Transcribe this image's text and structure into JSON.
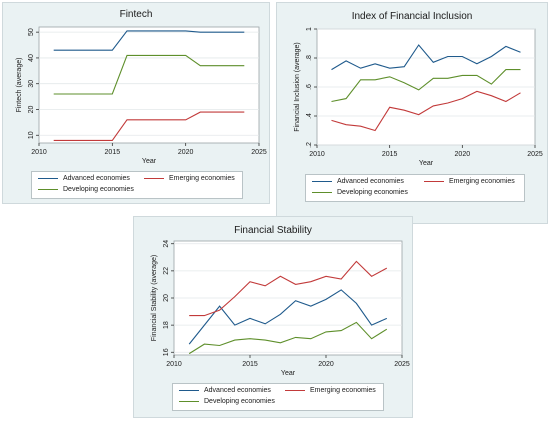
{
  "colors": {
    "advanced": "#1f5a8c",
    "emerging": "#c23a3a",
    "developing": "#5e8f2b",
    "plot_bg": "#ffffff",
    "panel_bg": "#eaf2f3"
  },
  "chart_data": [
    {
      "type": "line",
      "title": "Fintech",
      "xlabel": "Year",
      "ylabel": "Fintech (average)",
      "xlim": [
        2010,
        2025
      ],
      "ylim": [
        7,
        52
      ],
      "xticks": [
        2010,
        2015,
        2020,
        2025
      ],
      "yticks": [
        10,
        20,
        30,
        40,
        50
      ],
      "legend_position": "bottom",
      "x": [
        2011,
        2012,
        2013,
        2014,
        2015,
        2016,
        2017,
        2018,
        2019,
        2020,
        2021,
        2022,
        2023,
        2024
      ],
      "series": [
        {
          "name": "Advanced economies",
          "color_key": "advanced",
          "values": [
            43,
            43,
            43,
            43,
            43,
            50.5,
            50.5,
            50.5,
            50.5,
            50.5,
            50,
            50,
            50,
            50
          ]
        },
        {
          "name": "Emerging economies",
          "color_key": "emerging",
          "values": [
            8,
            8,
            8,
            8,
            8,
            16,
            16,
            16,
            16,
            16,
            19,
            19,
            19,
            19
          ]
        },
        {
          "name": "Developing economies",
          "color_key": "developing",
          "values": [
            26,
            26,
            26,
            26,
            26,
            41,
            41,
            41,
            41,
            41,
            37,
            37,
            37,
            37
          ]
        }
      ]
    },
    {
      "type": "line",
      "title": "Index of Financial Inclusion",
      "xlabel": "Year",
      "ylabel": "Financial Inclusion (average)",
      "xlim": [
        2010,
        2025
      ],
      "ylim": [
        0.2,
        1.0
      ],
      "xticks": [
        2010,
        2015,
        2020,
        2025
      ],
      "yticks": [
        0.2,
        0.4,
        0.6,
        0.8,
        1.0
      ],
      "ytick_labels": [
        ".2",
        ".4",
        ".6",
        ".8",
        "1"
      ],
      "legend_position": "bottom",
      "x": [
        2011,
        2012,
        2013,
        2014,
        2015,
        2016,
        2017,
        2018,
        2019,
        2020,
        2021,
        2022,
        2023,
        2024
      ],
      "series": [
        {
          "name": "Advanced economies",
          "color_key": "advanced",
          "values": [
            0.72,
            0.78,
            0.73,
            0.76,
            0.73,
            0.74,
            0.89,
            0.77,
            0.81,
            0.81,
            0.76,
            0.81,
            0.88,
            0.84
          ]
        },
        {
          "name": "Emerging economies",
          "color_key": "emerging",
          "values": [
            0.37,
            0.34,
            0.33,
            0.3,
            0.46,
            0.44,
            0.41,
            0.47,
            0.49,
            0.52,
            0.57,
            0.54,
            0.5,
            0.56
          ]
        },
        {
          "name": "Developing economies",
          "color_key": "developing",
          "values": [
            0.5,
            0.52,
            0.65,
            0.65,
            0.67,
            0.63,
            0.58,
            0.66,
            0.66,
            0.68,
            0.68,
            0.62,
            0.72,
            0.72
          ]
        }
      ]
    },
    {
      "type": "line",
      "title": "Financial Stability",
      "xlabel": "Year",
      "ylabel": "Financial Stability (average)",
      "xlim": [
        2010,
        2025
      ],
      "ylim": [
        15.8,
        24.2
      ],
      "xticks": [
        2010,
        2015,
        2020,
        2025
      ],
      "yticks": [
        16,
        18,
        20,
        22,
        24
      ],
      "legend_position": "bottom",
      "x": [
        2011,
        2012,
        2013,
        2014,
        2015,
        2016,
        2017,
        2018,
        2019,
        2020,
        2021,
        2022,
        2023,
        2024
      ],
      "series": [
        {
          "name": "Advanced economies",
          "color_key": "advanced",
          "values": [
            16.6,
            18.0,
            19.4,
            18.0,
            18.5,
            18.1,
            18.8,
            19.8,
            19.4,
            19.9,
            20.6,
            19.6,
            18.0,
            18.5
          ]
        },
        {
          "name": "Emerging economies",
          "color_key": "emerging",
          "values": [
            18.7,
            18.7,
            19.1,
            20.1,
            21.2,
            20.9,
            21.6,
            21.0,
            21.2,
            21.6,
            21.4,
            22.7,
            21.6,
            22.2
          ]
        },
        {
          "name": "Developing economies",
          "color_key": "developing",
          "values": [
            15.9,
            16.6,
            16.5,
            16.9,
            17.0,
            16.9,
            16.7,
            17.1,
            17.0,
            17.5,
            17.6,
            18.2,
            17.0,
            17.7
          ]
        }
      ]
    }
  ]
}
